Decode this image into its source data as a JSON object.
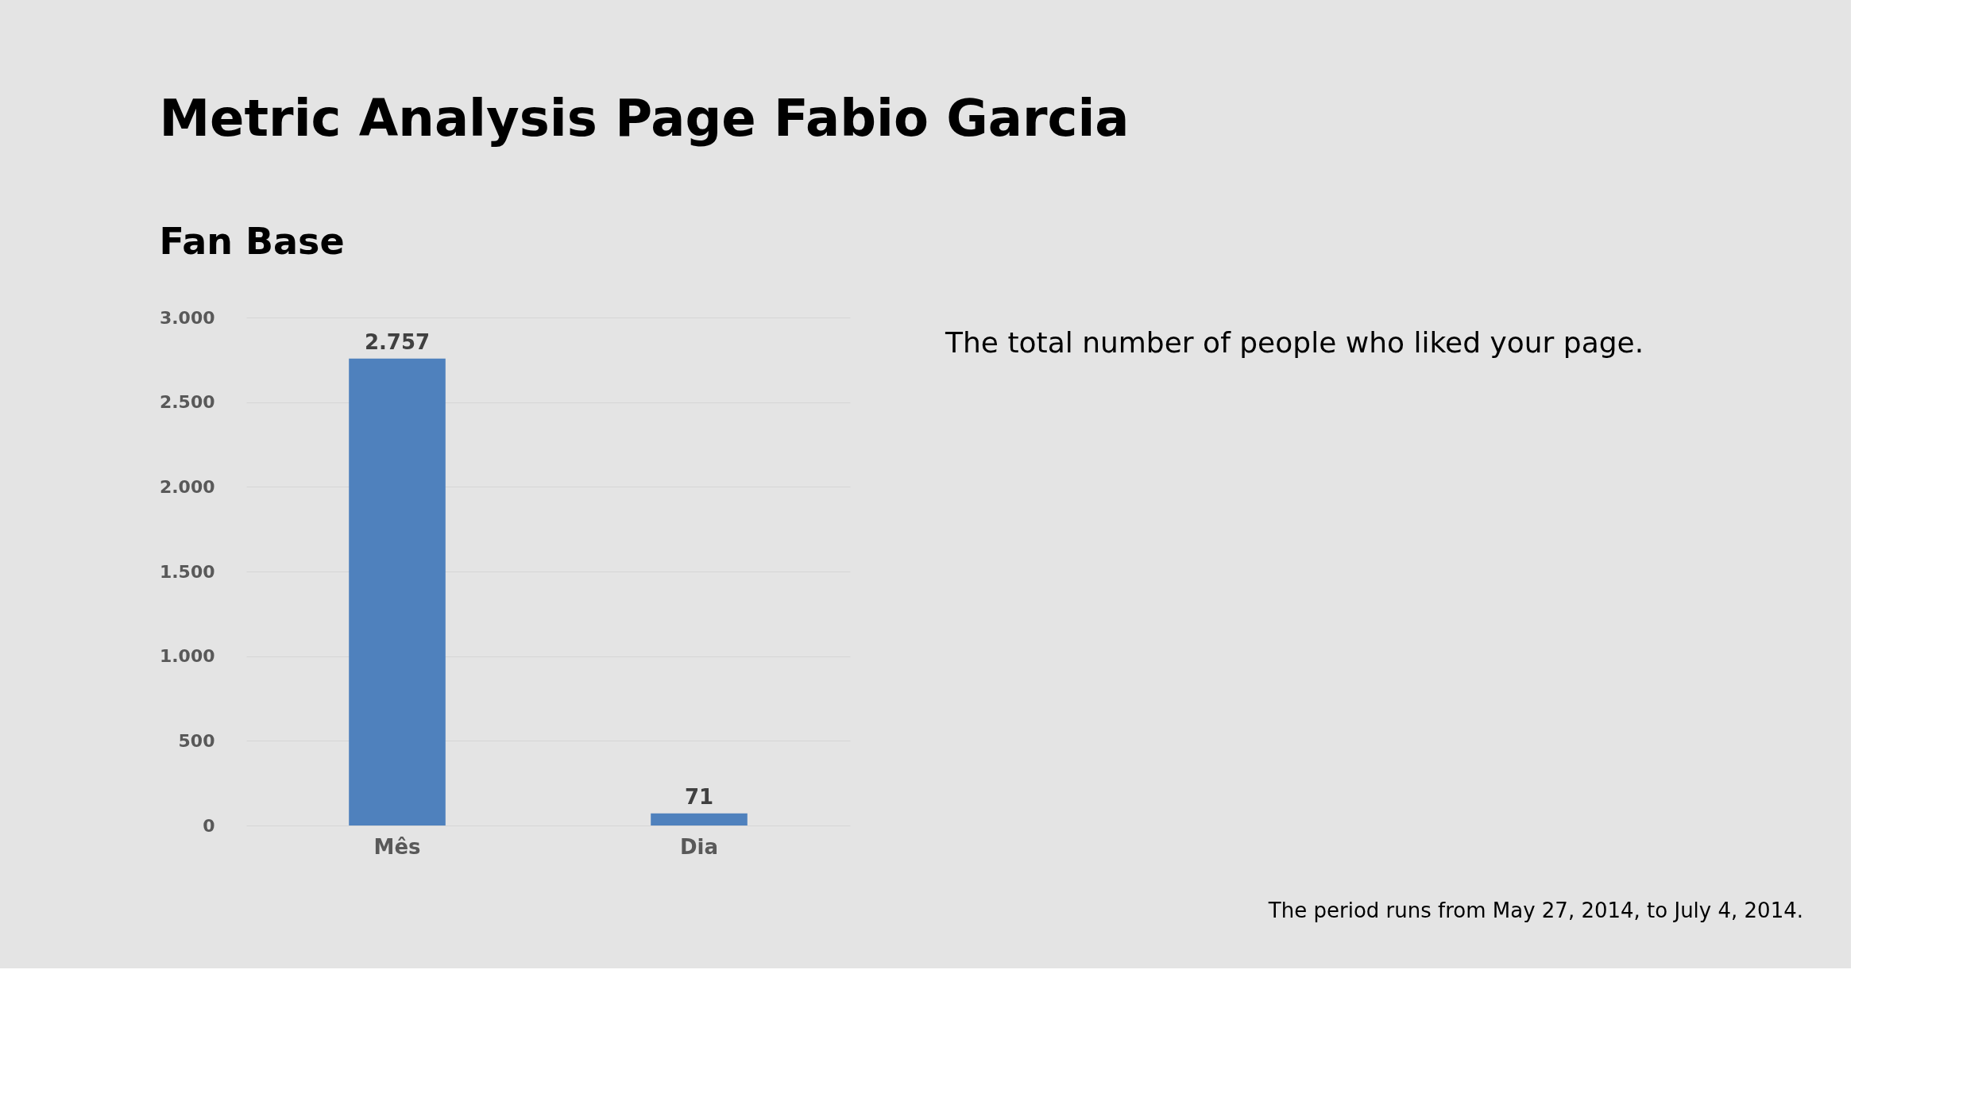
{
  "chart_data": {
    "type": "bar",
    "title": "Metric Analysis Page Fabio Garcia",
    "subtitle": "Fan Base",
    "categories": [
      "Mês",
      "Dia"
    ],
    "values": [
      2757,
      71
    ],
    "color": "#4f81bd",
    "value_labels": [
      "2.757",
      "71"
    ],
    "ylim": [
      0,
      3000
    ],
    "yticks": [
      {
        "value": 0,
        "label": "0"
      },
      {
        "value": 500,
        "label": "500"
      },
      {
        "value": 1000,
        "label": "1.000"
      },
      {
        "value": 1500,
        "label": "1.500"
      },
      {
        "value": 2000,
        "label": "2.000"
      },
      {
        "value": 2500,
        "label": "2.500"
      },
      {
        "value": 3000,
        "label": "3.000"
      }
    ],
    "grid": "y",
    "annotations": [
      "The total number of people who liked your page.",
      "The period runs from May 27, 2014, to July 4, 2014."
    ]
  }
}
